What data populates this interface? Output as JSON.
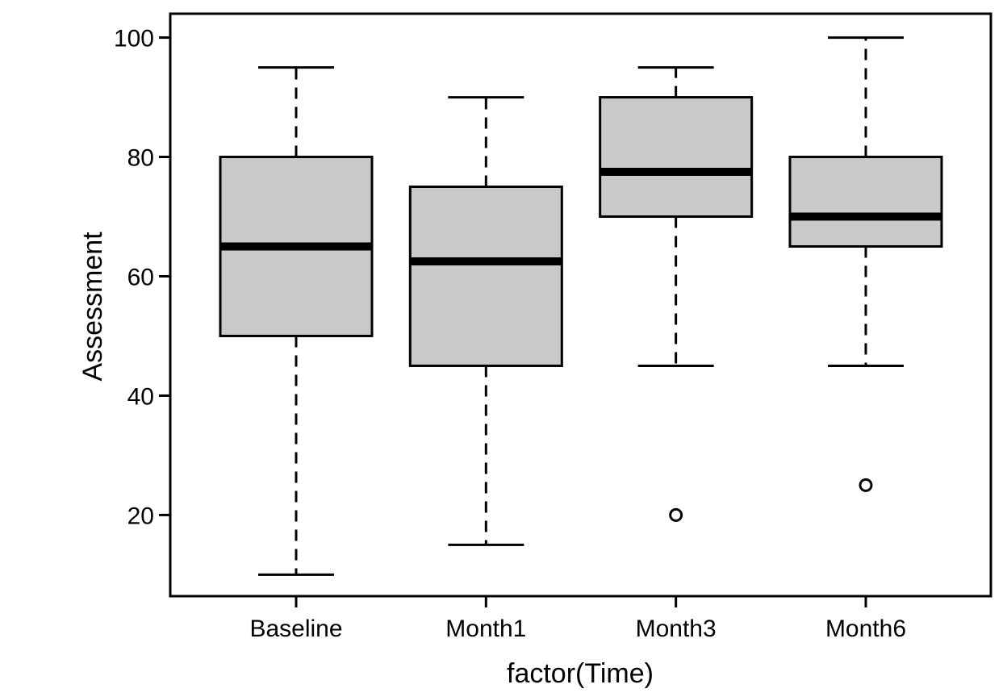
{
  "chart_data": {
    "type": "boxplot",
    "xlabel": "factor(Time)",
    "ylabel": "Assessment",
    "categories": [
      "Baseline",
      "Month1",
      "Month3",
      "Month6"
    ],
    "ylim": [
      6.4,
      104
    ],
    "yticks": [
      20,
      40,
      60,
      80,
      100
    ],
    "ytick_labels": [
      "20",
      "40",
      "60",
      "80",
      "100"
    ],
    "boxes": [
      {
        "category": "Baseline",
        "whisker_low": 10,
        "q1": 50,
        "median": 65,
        "q3": 80,
        "whisker_high": 95,
        "outliers": []
      },
      {
        "category": "Month1",
        "whisker_low": 15,
        "q1": 45,
        "median": 62.5,
        "q3": 75,
        "whisker_high": 90,
        "outliers": []
      },
      {
        "category": "Month3",
        "whisker_low": 45,
        "q1": 70,
        "median": 77.5,
        "q3": 90,
        "whisker_high": 95,
        "outliers": [
          20
        ]
      },
      {
        "category": "Month6",
        "whisker_low": 45,
        "q1": 65,
        "median": 70,
        "q3": 80,
        "whisker_high": 100,
        "outliers": [
          25
        ]
      }
    ],
    "box_fill": "#c9c9c9",
    "line_color": "#000000",
    "grid": false,
    "legend": "none"
  }
}
